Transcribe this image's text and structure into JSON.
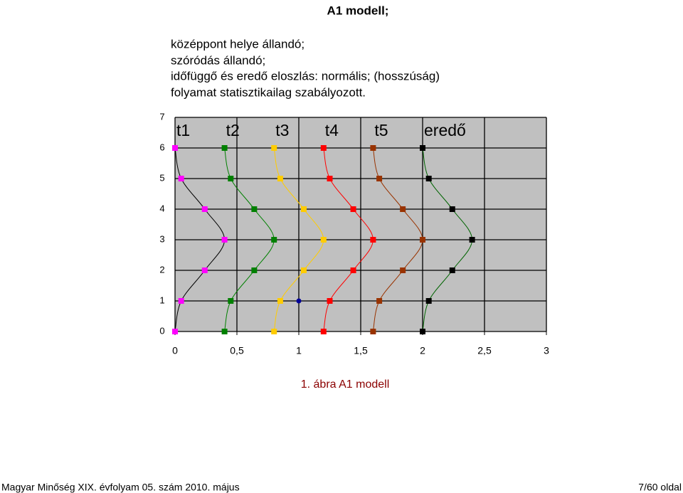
{
  "document": {
    "title": "A1 modell;",
    "lines": [
      "középpont helye állandó;",
      "szóródás állandó;",
      "időfüggő és eredő eloszlás: normális; (hosszúság)",
      "folyamat statisztikailag szabályozott."
    ],
    "caption": "1. ábra A1 modell",
    "footer_left": "Magyar Minőség XIX. évfolyam 05. szám 2010. május",
    "footer_right": "7/60 oldal"
  },
  "chart_data": {
    "type": "scatter",
    "y": [
      0,
      1,
      2,
      3,
      4,
      5,
      6
    ],
    "series": [
      {
        "name": "t1",
        "color": "#ff00ff",
        "line_color": "#000000",
        "x": [
          0,
          0.05,
          0.24,
          0.4,
          0.24,
          0.05,
          0
        ]
      },
      {
        "name": "t2",
        "color": "#008000",
        "line_color": "#008000",
        "x": [
          0.4,
          0.45,
          0.64,
          0.8,
          0.64,
          0.45,
          0.4
        ]
      },
      {
        "name": "t3",
        "color": "#ffcc00",
        "line_color": "#ffcc00",
        "x": [
          0.8,
          0.85,
          1.04,
          1.2,
          1.04,
          0.85,
          0.8
        ]
      },
      {
        "name": "t4",
        "color": "#ff0000",
        "line_color": "#ff0000",
        "x": [
          1.2,
          1.25,
          1.44,
          1.6,
          1.44,
          1.25,
          1.2
        ]
      },
      {
        "name": "t5",
        "color": "#993300",
        "line_color": "#993300",
        "x": [
          1.6,
          1.65,
          1.84,
          2.0,
          1.84,
          1.65,
          1.6
        ]
      },
      {
        "name": "eredő",
        "color": "#000000",
        "line_color": "#006400",
        "x": [
          2.0,
          2.05,
          2.24,
          2.4,
          2.24,
          2.05,
          2.0
        ]
      }
    ],
    "extra_point": {
      "x": 1,
      "y": 1,
      "color": "#000099"
    },
    "xlim": [
      0,
      3
    ],
    "ylim": [
      0,
      7
    ],
    "xticks": [
      0,
      {
        "value": 0.5,
        "label": "0,5"
      },
      1,
      {
        "value": 1.5,
        "label": "1,5"
      },
      2,
      {
        "value": 2.5,
        "label": "2,5"
      },
      3
    ],
    "yticks": [
      0,
      1,
      2,
      3,
      4,
      5,
      6,
      7
    ],
    "grid": true,
    "background": "#c0c0c0"
  }
}
